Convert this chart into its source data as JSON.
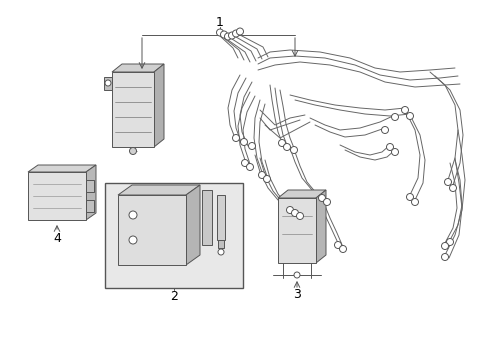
{
  "bg_color": "#ffffff",
  "line_color": "#555555",
  "label_color": "#000000",
  "figsize": [
    4.89,
    3.6
  ],
  "dpi": 100,
  "lw": 0.7,
  "gray": "#888888",
  "lightgray": "#cccccc",
  "boxfill": "#e8e8e8"
}
